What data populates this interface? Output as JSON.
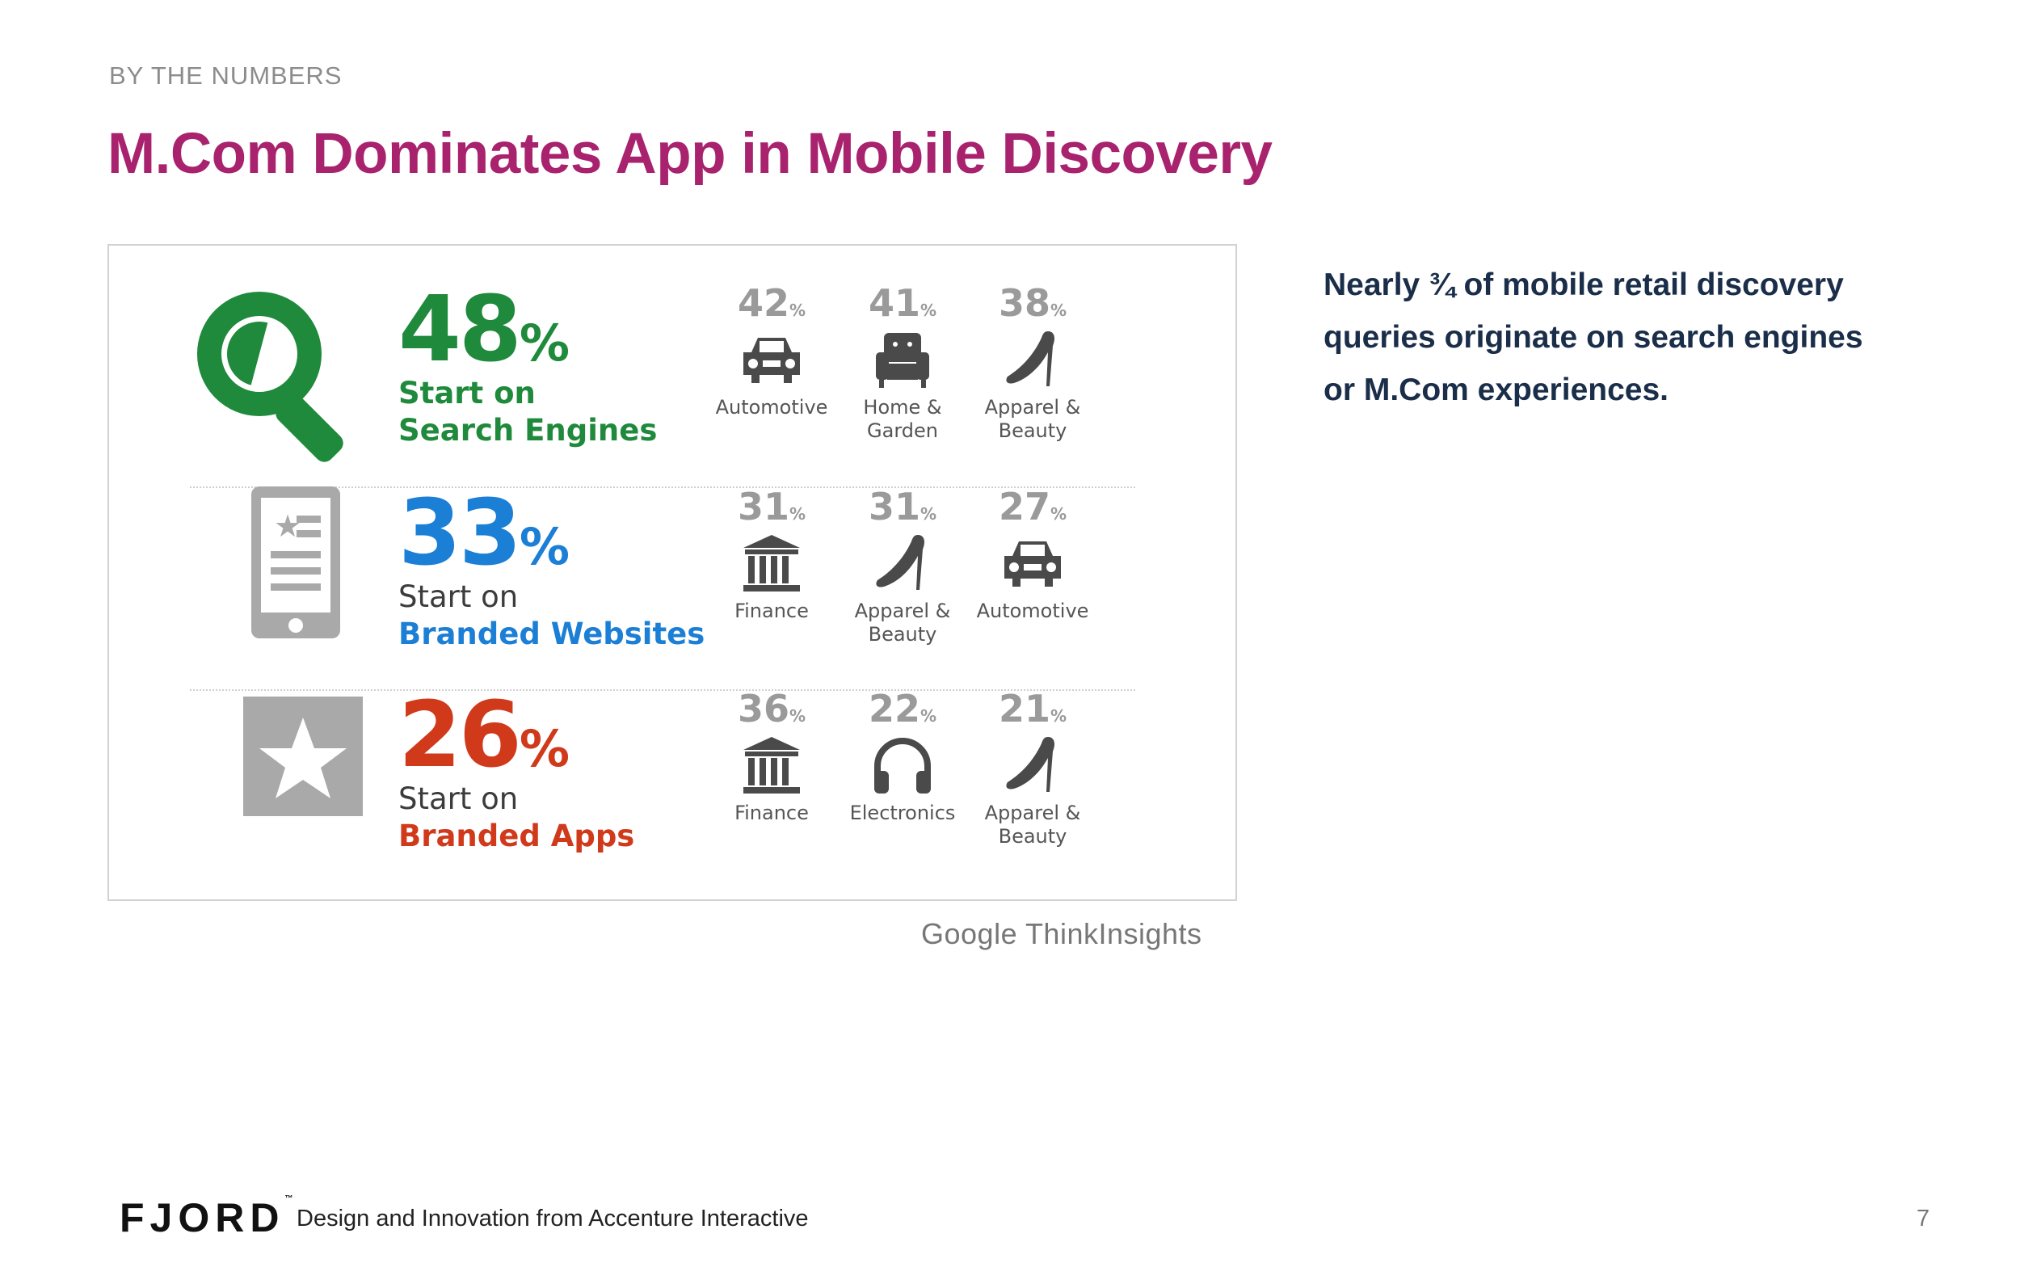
{
  "header": {
    "eyebrow": "BY THE NUMBERS",
    "title": "M.Com Dominates App in Mobile Discovery"
  },
  "infographic": {
    "rows": [
      {
        "percent": "48",
        "percent_symbol": "%",
        "line1": "Start on",
        "line2": "Search Engines",
        "icon": "magnifier-icon",
        "color": "#1f8a3b",
        "categories": [
          {
            "value": "42",
            "unit": "%",
            "label": "Automotive",
            "icon": "car-icon"
          },
          {
            "value": "41",
            "unit": "%",
            "label": "Home & Garden",
            "icon": "armchair-icon"
          },
          {
            "value": "38",
            "unit": "%",
            "label": "Apparel & Beauty",
            "icon": "high-heel-icon"
          }
        ]
      },
      {
        "percent": "33",
        "percent_symbol": "%",
        "line1": "Start on",
        "line2": "Branded Websites",
        "icon": "mobile-website-icon",
        "color": "#1c7fd6",
        "categories": [
          {
            "value": "31",
            "unit": "%",
            "label": "Finance",
            "icon": "bank-icon"
          },
          {
            "value": "31",
            "unit": "%",
            "label": "Apparel & Beauty",
            "icon": "high-heel-icon"
          },
          {
            "value": "27",
            "unit": "%",
            "label": "Automotive",
            "icon": "car-icon"
          }
        ]
      },
      {
        "percent": "26",
        "percent_symbol": "%",
        "line1": "Start on",
        "line2": "Branded Apps",
        "icon": "app-star-icon",
        "color": "#d03a1b",
        "categories": [
          {
            "value": "36",
            "unit": "%",
            "label": "Finance",
            "icon": "bank-icon"
          },
          {
            "value": "22",
            "unit": "%",
            "label": "Electronics",
            "icon": "headphones-icon"
          },
          {
            "value": "21",
            "unit": "%",
            "label": "Apparel & Beauty",
            "icon": "high-heel-icon"
          }
        ]
      }
    ],
    "source": "Google ThinkInsights"
  },
  "callout": {
    "text": "Nearly ¾ of mobile retail discovery queries originate on search engines or M.Com experiences."
  },
  "footer": {
    "logo": "FJORD",
    "trademark": "™",
    "tagline": "Design and Innovation from Accenture Interactive",
    "page_number": "7"
  }
}
